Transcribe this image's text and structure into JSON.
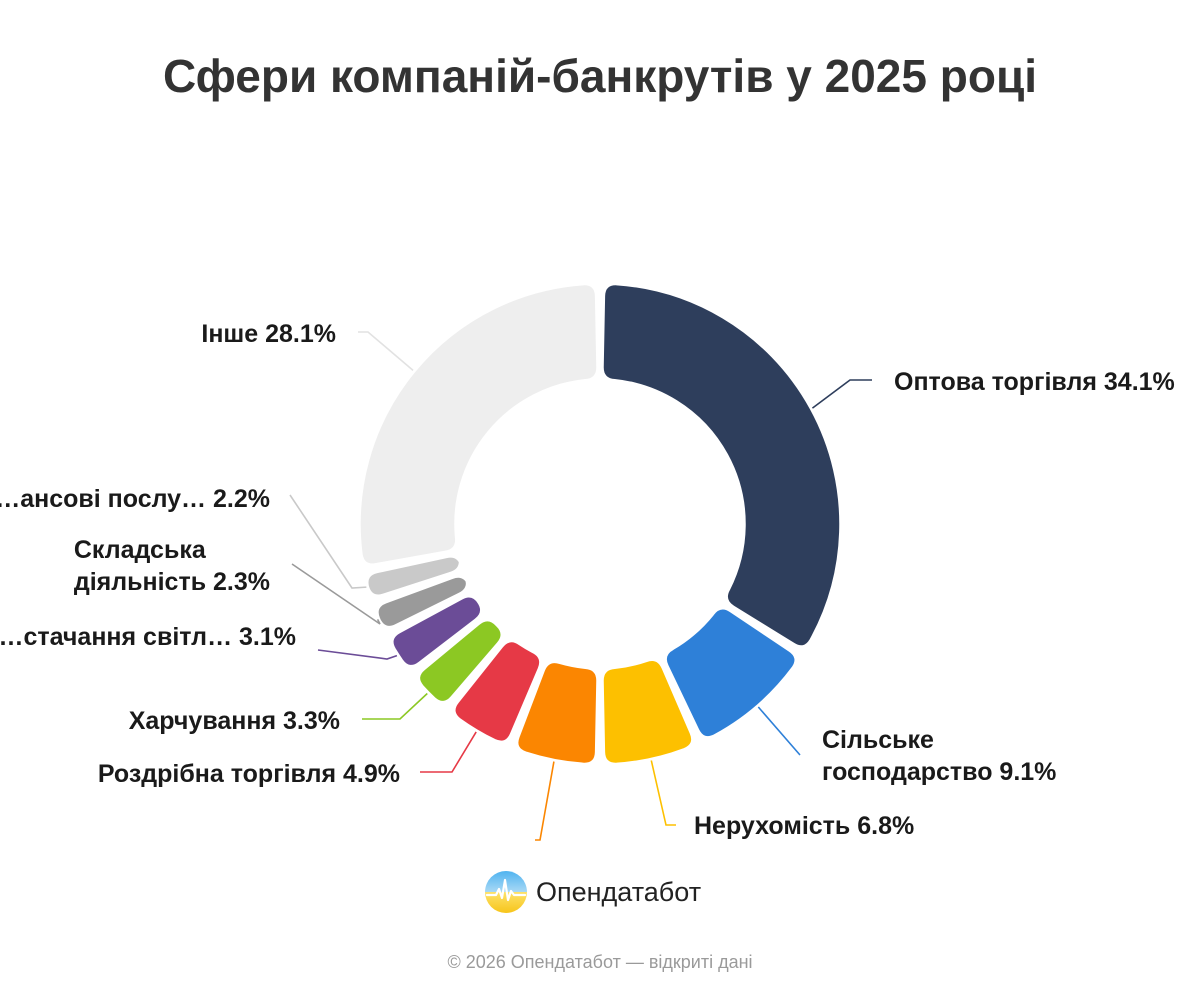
{
  "chart_data": {
    "type": "pie",
    "donut": true,
    "title": "Сфери компаній-банкрутів у 2025 році",
    "legend": "none",
    "slices": [
      {
        "label": "Оптова торгівля",
        "value": 34.1,
        "display": "Оптова торгівля 34.1%",
        "color": "#2e3e5c"
      },
      {
        "label": "Сільське господарство",
        "value": 9.1,
        "display": [
          "Сільське",
          "господарство 9.1%"
        ],
        "color": "#2e80d8"
      },
      {
        "label": "Нерухомість",
        "value": 6.8,
        "display": "Нерухомість 6.8%",
        "color": "#fdc000"
      },
      {
        "label": "",
        "value": 6.1,
        "display": "",
        "color": "#fb8601"
      },
      {
        "label": "Роздрібна торгівля",
        "value": 4.9,
        "display": "Роздрібна торгівля 4.9%",
        "color": "#e63946"
      },
      {
        "label": "Харчування",
        "value": 3.3,
        "display": "Харчування 3.3%",
        "color": "#8cc823"
      },
      {
        "label": "…стачання світл…",
        "value": 3.1,
        "display": "…стачання світл… 3.1%",
        "color": "#6b4c97"
      },
      {
        "label": "Складська діяльність",
        "value": 2.3,
        "display": [
          "Складська",
          "діяльність 2.3%"
        ],
        "color": "#9a9a9a"
      },
      {
        "label": "…ансові послу…",
        "value": 2.2,
        "display": "…ансові послу… 2.2%",
        "color": "#c9c9c9"
      },
      {
        "label": "Інше",
        "value": 28.1,
        "display": "Інше 28.1%",
        "color": "#eeeeee"
      }
    ]
  },
  "brand": {
    "name": "Опендатабот",
    "icon": "opendatabot-logo-icon"
  },
  "footer": {
    "text": "© 2026 Опендатабот — відкриті дані"
  }
}
